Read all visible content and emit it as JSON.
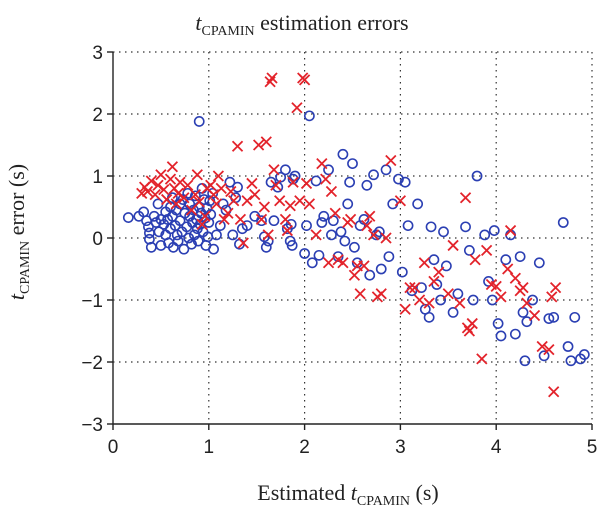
{
  "chart_data": {
    "type": "scatter",
    "title": {
      "main": "t",
      "sub": "CPAMIN",
      "rest": " estimation errors"
    },
    "xlabel": {
      "pre": "Estimated ",
      "main": "t",
      "sub": "CPAMIN",
      "rest": " (s)"
    },
    "ylabel": {
      "main": "t",
      "sub": "CPAMIN",
      "rest": " error (s)"
    },
    "xlim": [
      0,
      5
    ],
    "ylim": [
      -3,
      3
    ],
    "xticks": [
      0,
      1,
      2,
      3,
      4,
      5
    ],
    "yticks": [
      -3,
      -2,
      -1,
      0,
      1,
      2,
      3
    ],
    "grid": true,
    "colors": {
      "circle_series": "#2b3fb3",
      "cross_series": "#e3232b"
    },
    "series": [
      {
        "marker": "circle",
        "points": [
          [
            0.16,
            0.33
          ],
          [
            0.27,
            0.35
          ],
          [
            0.32,
            0.42
          ],
          [
            0.35,
            0.28
          ],
          [
            0.37,
            0.18
          ],
          [
            0.38,
            0.08
          ],
          [
            0.38,
            -0.02
          ],
          [
            0.4,
            -0.15
          ],
          [
            0.43,
            0.35
          ],
          [
            0.45,
            0.25
          ],
          [
            0.47,
            0.55
          ],
          [
            0.48,
            0.1
          ],
          [
            0.5,
            0.3
          ],
          [
            0.5,
            -0.12
          ],
          [
            0.53,
            0.22
          ],
          [
            0.55,
            0.42
          ],
          [
            0.55,
            0.05
          ],
          [
            0.57,
            0.3
          ],
          [
            0.58,
            -0.08
          ],
          [
            0.6,
            0.5
          ],
          [
            0.6,
            0.15
          ],
          [
            0.62,
            0.65
          ],
          [
            0.62,
            0.35
          ],
          [
            0.63,
            -0.15
          ],
          [
            0.65,
            0.2
          ],
          [
            0.66,
            0.45
          ],
          [
            0.67,
            0.05
          ],
          [
            0.68,
            -0.05
          ],
          [
            0.7,
            0.55
          ],
          [
            0.7,
            0.28
          ],
          [
            0.72,
            0.1
          ],
          [
            0.73,
            0.62
          ],
          [
            0.74,
            -0.18
          ],
          [
            0.75,
            0.4
          ],
          [
            0.77,
            0.18
          ],
          [
            0.78,
            0.72
          ],
          [
            0.79,
            0.0
          ],
          [
            0.8,
            0.35
          ],
          [
            0.8,
            0.55
          ],
          [
            0.82,
            -0.1
          ],
          [
            0.83,
            0.25
          ],
          [
            0.84,
            0.45
          ],
          [
            0.85,
            0.05
          ],
          [
            0.86,
            0.68
          ],
          [
            0.87,
            0.3
          ],
          [
            0.88,
            0.15
          ],
          [
            0.89,
            -0.05
          ],
          [
            0.9,
            1.88
          ],
          [
            0.9,
            0.5
          ],
          [
            0.91,
            0.22
          ],
          [
            0.92,
            0.4
          ],
          [
            0.93,
            0.8
          ],
          [
            0.94,
            0.1
          ],
          [
            0.95,
            0.62
          ],
          [
            0.96,
            0.32
          ],
          [
            0.97,
            -0.12
          ],
          [
            0.98,
            0.48
          ],
          [
            0.99,
            0.02
          ],
          [
            1.0,
            0.25
          ],
          [
            1.01,
            0.6
          ],
          [
            1.02,
            0.38
          ],
          [
            1.04,
            0.72
          ],
          [
            1.05,
            -0.18
          ],
          [
            1.08,
            0.05
          ],
          [
            1.12,
            0.2
          ],
          [
            1.15,
            0.55
          ],
          [
            1.18,
            0.45
          ],
          [
            1.22,
            0.9
          ],
          [
            1.25,
            0.05
          ],
          [
            1.28,
            0.65
          ],
          [
            1.3,
            0.82
          ],
          [
            1.32,
            -0.1
          ],
          [
            1.35,
            0.15
          ],
          [
            1.4,
            0.2
          ],
          [
            1.48,
            0.35
          ],
          [
            1.55,
            0.28
          ],
          [
            1.58,
            0.02
          ],
          [
            1.6,
            -0.15
          ],
          [
            1.62,
            -0.05
          ],
          [
            1.65,
            0.9
          ],
          [
            1.68,
            0.28
          ],
          [
            1.72,
            0.82
          ],
          [
            1.75,
            0.98
          ],
          [
            1.8,
            1.1
          ],
          [
            1.82,
            0.15
          ],
          [
            1.85,
            -0.05
          ],
          [
            1.86,
            0.22
          ],
          [
            1.87,
            -0.12
          ],
          [
            1.88,
            0.95
          ],
          [
            1.9,
            1.0
          ],
          [
            2.0,
            -0.25
          ],
          [
            2.02,
            0.2
          ],
          [
            2.05,
            1.97
          ],
          [
            2.08,
            -0.4
          ],
          [
            2.12,
            0.92
          ],
          [
            2.15,
            -0.28
          ],
          [
            2.18,
            0.25
          ],
          [
            2.2,
            0.35
          ],
          [
            2.25,
            1.1
          ],
          [
            2.28,
            0.05
          ],
          [
            2.3,
            0.28
          ],
          [
            2.35,
            -0.3
          ],
          [
            2.38,
            0.1
          ],
          [
            2.4,
            1.35
          ],
          [
            2.42,
            -0.05
          ],
          [
            2.45,
            0.55
          ],
          [
            2.47,
            0.9
          ],
          [
            2.5,
            1.2
          ],
          [
            2.52,
            -0.15
          ],
          [
            2.55,
            -0.4
          ],
          [
            2.58,
            0.2
          ],
          [
            2.62,
            0.3
          ],
          [
            2.65,
            0.85
          ],
          [
            2.68,
            -0.6
          ],
          [
            2.72,
            1.02
          ],
          [
            2.75,
            0.05
          ],
          [
            2.78,
            0.1
          ],
          [
            2.8,
            -0.5
          ],
          [
            2.85,
            1.1
          ],
          [
            2.88,
            -0.3
          ],
          [
            2.92,
            0.55
          ],
          [
            2.98,
            0.95
          ],
          [
            3.02,
            -0.55
          ],
          [
            3.05,
            0.9
          ],
          [
            3.08,
            0.2
          ],
          [
            3.12,
            -0.85
          ],
          [
            3.18,
            0.55
          ],
          [
            3.22,
            -0.8
          ],
          [
            3.26,
            -1.15
          ],
          [
            3.3,
            -1.28
          ],
          [
            3.32,
            0.18
          ],
          [
            3.35,
            -0.35
          ],
          [
            3.38,
            -0.75
          ],
          [
            3.42,
            -1.0
          ],
          [
            3.45,
            0.1
          ],
          [
            3.48,
            -0.45
          ],
          [
            3.55,
            -1.2
          ],
          [
            3.6,
            -0.9
          ],
          [
            3.68,
            0.18
          ],
          [
            3.72,
            -0.2
          ],
          [
            3.76,
            -1.0
          ],
          [
            3.8,
            1.0
          ],
          [
            3.88,
            0.05
          ],
          [
            3.92,
            -0.7
          ],
          [
            3.96,
            -1.0
          ],
          [
            3.98,
            0.12
          ],
          [
            4.02,
            -1.38
          ],
          [
            4.05,
            -1.58
          ],
          [
            4.1,
            -0.35
          ],
          [
            4.15,
            0.05
          ],
          [
            4.2,
            -1.55
          ],
          [
            4.25,
            -0.3
          ],
          [
            4.28,
            -1.2
          ],
          [
            4.3,
            -1.98
          ],
          [
            4.32,
            -1.35
          ],
          [
            4.38,
            -1.0
          ],
          [
            4.45,
            -0.4
          ],
          [
            4.5,
            -1.9
          ],
          [
            4.55,
            -1.3
          ],
          [
            4.6,
            -1.28
          ],
          [
            4.7,
            0.25
          ],
          [
            4.75,
            -1.75
          ],
          [
            4.78,
            -1.98
          ],
          [
            4.82,
            -1.28
          ],
          [
            4.88,
            -1.95
          ],
          [
            4.92,
            -1.88
          ]
        ]
      },
      {
        "marker": "cross",
        "points": [
          [
            0.3,
            0.72
          ],
          [
            0.33,
            0.82
          ],
          [
            0.36,
            0.75
          ],
          [
            0.4,
            0.92
          ],
          [
            0.44,
            0.7
          ],
          [
            0.47,
            0.85
          ],
          [
            0.5,
            1.02
          ],
          [
            0.53,
            0.78
          ],
          [
            0.56,
            0.62
          ],
          [
            0.6,
            0.95
          ],
          [
            0.62,
            1.15
          ],
          [
            0.64,
            0.8
          ],
          [
            0.66,
            0.55
          ],
          [
            0.68,
            0.72
          ],
          [
            0.7,
            0.9
          ],
          [
            0.74,
            0.65
          ],
          [
            0.78,
            0.85
          ],
          [
            0.82,
            0.45
          ],
          [
            0.86,
            0.7
          ],
          [
            0.88,
            1.02
          ],
          [
            0.9,
            0.58
          ],
          [
            0.93,
            0.22
          ],
          [
            0.96,
            0.35
          ],
          [
            0.98,
            0.8
          ],
          [
            1.02,
            0.85
          ],
          [
            1.05,
            0.7
          ],
          [
            1.08,
            0.55
          ],
          [
            1.1,
            1.0
          ],
          [
            1.13,
            0.8
          ],
          [
            1.16,
            0.3
          ],
          [
            1.2,
            0.4
          ],
          [
            1.23,
            0.75
          ],
          [
            1.26,
            0.6
          ],
          [
            1.3,
            1.48
          ],
          [
            1.33,
            0.3
          ],
          [
            1.36,
            -0.08
          ],
          [
            1.4,
            0.6
          ],
          [
            1.45,
            0.88
          ],
          [
            1.48,
            0.7
          ],
          [
            1.52,
            1.5
          ],
          [
            1.55,
            0.3
          ],
          [
            1.58,
            0.5
          ],
          [
            1.6,
            1.55
          ],
          [
            1.62,
            0.05
          ],
          [
            1.64,
            2.52
          ],
          [
            1.66,
            2.58
          ],
          [
            1.68,
            1.1
          ],
          [
            1.7,
            0.85
          ],
          [
            1.74,
            0.6
          ],
          [
            1.8,
            0.3
          ],
          [
            1.82,
            0.12
          ],
          [
            1.85,
            0.52
          ],
          [
            1.88,
            0.9
          ],
          [
            1.92,
            2.1
          ],
          [
            1.95,
            0.6
          ],
          [
            1.98,
            2.58
          ],
          [
            2.0,
            2.55
          ],
          [
            2.02,
            0.88
          ],
          [
            2.05,
            0.55
          ],
          [
            2.12,
            0.05
          ],
          [
            2.18,
            1.2
          ],
          [
            2.22,
            0.95
          ],
          [
            2.25,
            -0.4
          ],
          [
            2.28,
            0.75
          ],
          [
            2.32,
            0.4
          ],
          [
            2.35,
            -0.35
          ],
          [
            2.4,
            -0.4
          ],
          [
            2.45,
            0.25
          ],
          [
            2.48,
            0.3
          ],
          [
            2.52,
            -0.6
          ],
          [
            2.55,
            -0.45
          ],
          [
            2.58,
            -0.9
          ],
          [
            2.62,
            -0.45
          ],
          [
            2.65,
            0.2
          ],
          [
            2.68,
            0.35
          ],
          [
            2.72,
            0.05
          ],
          [
            2.76,
            -0.95
          ],
          [
            2.8,
            -0.9
          ],
          [
            2.85,
            0.0
          ],
          [
            2.9,
            1.25
          ],
          [
            3.0,
            0.6
          ],
          [
            3.05,
            -1.15
          ],
          [
            3.1,
            -0.8
          ],
          [
            3.15,
            -0.8
          ],
          [
            3.2,
            -1.0
          ],
          [
            3.25,
            -0.4
          ],
          [
            3.3,
            -1.05
          ],
          [
            3.35,
            -0.7
          ],
          [
            3.4,
            -0.55
          ],
          [
            3.5,
            -0.9
          ],
          [
            3.55,
            -0.12
          ],
          [
            3.62,
            -1.05
          ],
          [
            3.68,
            0.65
          ],
          [
            3.7,
            -1.45
          ],
          [
            3.72,
            -1.5
          ],
          [
            3.75,
            -1.38
          ],
          [
            3.78,
            -0.35
          ],
          [
            3.85,
            -1.95
          ],
          [
            3.9,
            -0.2
          ],
          [
            3.95,
            -0.75
          ],
          [
            4.0,
            -0.78
          ],
          [
            4.05,
            -0.95
          ],
          [
            4.12,
            -0.5
          ],
          [
            4.15,
            0.12
          ],
          [
            4.2,
            -0.65
          ],
          [
            4.25,
            -0.85
          ],
          [
            4.28,
            -0.8
          ],
          [
            4.32,
            -1.05
          ],
          [
            4.4,
            -1.25
          ],
          [
            4.48,
            -1.75
          ],
          [
            4.55,
            -1.8
          ],
          [
            4.58,
            -0.95
          ],
          [
            4.62,
            -0.8
          ],
          [
            4.6,
            -2.48
          ]
        ]
      }
    ]
  }
}
